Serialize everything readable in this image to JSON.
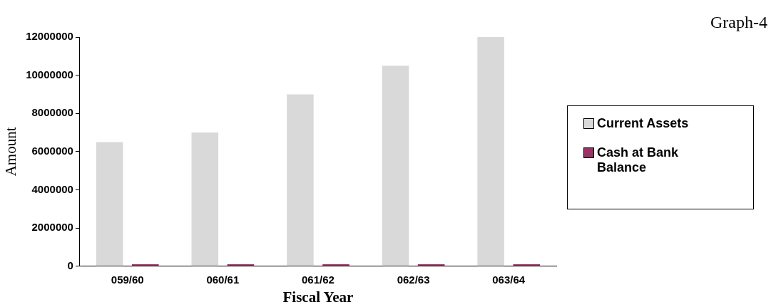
{
  "chart_data": {
    "type": "bar",
    "title": "Graph-4",
    "xlabel": "Fiscal Year",
    "ylabel": "Amount",
    "categories": [
      "059/60",
      "060/61",
      "061/62",
      "062/63",
      "063/64"
    ],
    "series": [
      {
        "name": "Current Assets",
        "color": "#d9d9d9",
        "values": [
          6500000,
          7000000,
          9000000,
          10500000,
          12000000
        ]
      },
      {
        "name": "Cash at Bank Balance",
        "color": "#993366",
        "values": [
          100000,
          100000,
          100000,
          100000,
          100000
        ]
      }
    ],
    "ylim": [
      0,
      12000000
    ],
    "yticks": [
      0,
      2000000,
      4000000,
      6000000,
      8000000,
      10000000,
      12000000
    ],
    "grid": false,
    "legend": "right"
  }
}
